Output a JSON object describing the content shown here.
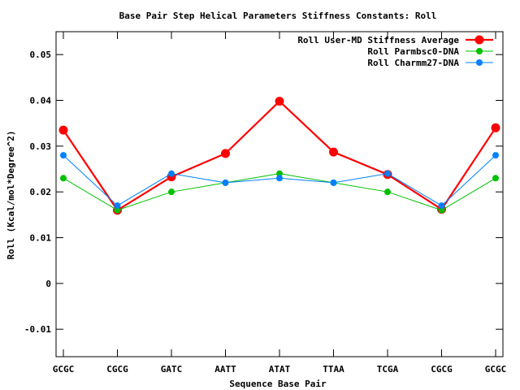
{
  "chart_data": {
    "type": "line",
    "title": "Base Pair Step Helical Parameters Stiffness Constants: Roll",
    "xlabel": "Sequence Base Pair",
    "ylabel": "Roll (Kcal/mol*Degree^2)",
    "categories": [
      "GCGC",
      "CGCG",
      "GATC",
      "AATT",
      "ATAT",
      "TTAA",
      "TCGA",
      "CGCG",
      "GCGC"
    ],
    "ylim": [
      -0.016,
      0.055
    ],
    "yticks": [
      -0.01,
      0,
      0.01,
      0.02,
      0.03,
      0.04,
      0.05
    ],
    "ytick_labels": [
      "-0.01",
      "0",
      "0.01",
      "0.02",
      "0.03",
      "0.04",
      "0.05"
    ],
    "grid": false,
    "legend_position": "top-right",
    "series": [
      {
        "name": "Roll User-MD Stiffness Average",
        "color": "#ff0000",
        "values": [
          0.0335,
          0.016,
          0.0233,
          0.0284,
          0.0398,
          0.0287,
          0.0238,
          0.0162,
          0.034
        ]
      },
      {
        "name": "Roll Parmbsc0-DNA",
        "color": "#00c000",
        "values": [
          0.023,
          0.016,
          0.02,
          0.022,
          0.024,
          0.022,
          0.02,
          0.016,
          0.023
        ]
      },
      {
        "name": "Roll Charmm27-DNA",
        "color": "#0080ff",
        "values": [
          0.028,
          0.017,
          0.024,
          0.022,
          0.023,
          0.022,
          0.024,
          0.017,
          0.028
        ]
      }
    ]
  }
}
